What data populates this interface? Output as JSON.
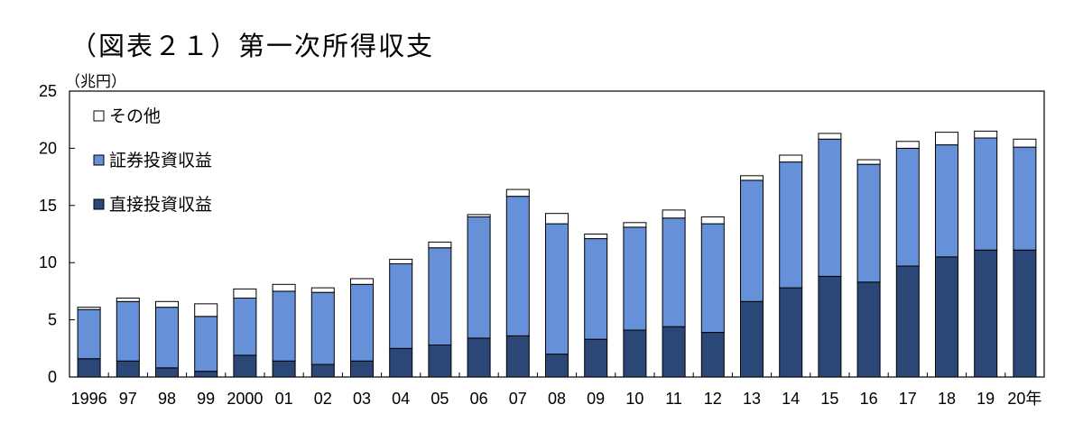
{
  "title": "（図表２１）第一次所得収支",
  "unit": "（兆円）",
  "colors": {
    "direct": "#2a4778",
    "portfolio": "#6690d8",
    "other": "#ffffff",
    "outline": "#000000"
  },
  "chart_data": {
    "type": "bar",
    "stacked": true,
    "categories": [
      "1996",
      "97",
      "98",
      "99",
      "2000",
      "01",
      "02",
      "03",
      "04",
      "05",
      "06",
      "07",
      "08",
      "09",
      "10",
      "11",
      "12",
      "13",
      "14",
      "15",
      "16",
      "17",
      "18",
      "19",
      "20年"
    ],
    "series": [
      {
        "name": "直接投資収益",
        "values": [
          1.6,
          1.4,
          0.8,
          0.5,
          1.9,
          1.4,
          1.1,
          1.4,
          2.5,
          2.8,
          3.4,
          3.6,
          2.0,
          3.3,
          4.1,
          4.4,
          3.9,
          6.6,
          7.8,
          8.8,
          8.3,
          9.7,
          10.5,
          11.1,
          11.1
        ]
      },
      {
        "name": "証券投資収益",
        "values": [
          4.3,
          5.2,
          5.3,
          4.8,
          5.0,
          6.1,
          6.3,
          6.7,
          7.4,
          8.5,
          10.6,
          12.2,
          11.4,
          8.8,
          9.0,
          9.5,
          9.5,
          10.6,
          11.0,
          12.0,
          10.3,
          10.3,
          9.8,
          9.8,
          9.0
        ]
      },
      {
        "name": "その他",
        "values": [
          0.2,
          0.3,
          0.5,
          1.1,
          0.8,
          0.6,
          0.4,
          0.5,
          0.4,
          0.5,
          0.2,
          0.6,
          0.9,
          0.4,
          0.4,
          0.7,
          0.6,
          0.4,
          0.6,
          0.5,
          0.4,
          0.6,
          1.1,
          0.6,
          0.7
        ]
      }
    ],
    "legend_order": [
      "その他",
      "証券投資収益",
      "直接投資収益"
    ],
    "ylim": [
      0,
      25
    ],
    "yticks": [
      "0",
      "5",
      "10",
      "15",
      "20",
      "25"
    ],
    "ytick_values": [
      0,
      5,
      10,
      15,
      20,
      25
    ],
    "legend_position": "top-left",
    "grid": false
  }
}
